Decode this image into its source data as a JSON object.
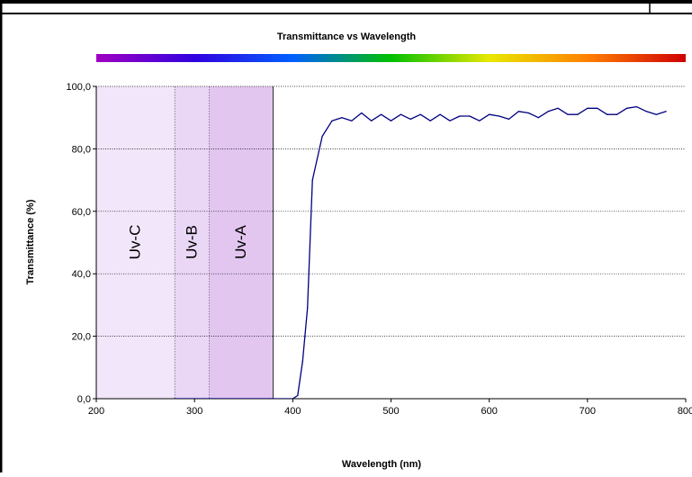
{
  "chart_data": {
    "type": "line",
    "title": "Transmittance vs Wavelength",
    "xlabel": "Wavelength (nm)",
    "ylabel": "Transmittance (%)",
    "xlim": [
      200,
      800
    ],
    "ylim": [
      0,
      100
    ],
    "x_ticks": [
      200,
      300,
      400,
      500,
      600,
      700,
      800
    ],
    "x_tick_labels": [
      "200",
      "300",
      "400",
      "500",
      "600",
      "700",
      "800"
    ],
    "y_ticks": [
      0,
      20,
      40,
      60,
      80,
      100
    ],
    "y_tick_labels": [
      "0,0",
      "20,0",
      "40,0",
      "60,0",
      "80,0",
      "100,0"
    ],
    "grid": {
      "horizontal": true,
      "vertical": false,
      "style": "dotted"
    },
    "spectrum_bar_colors": [
      "#a000c0",
      "#3000e0",
      "#0060ff",
      "#00c000",
      "#e8e800",
      "#ff8000",
      "#d00000"
    ],
    "line_color": "#000080",
    "uv_regions": [
      {
        "label": "Uv-C",
        "x0": 200,
        "x1": 280,
        "color": "#f2e6fa"
      },
      {
        "label": "Uv-B",
        "x0": 280,
        "x1": 315,
        "color": "#ead6f5"
      },
      {
        "label": "Uv-A",
        "x0": 315,
        "x1": 380,
        "color": "#e2c6f0"
      }
    ],
    "series": [
      {
        "x": [
          280,
          290,
          300,
          310,
          320,
          330,
          340,
          350,
          360,
          370,
          380,
          390,
          400,
          405,
          410,
          415,
          420,
          430,
          440,
          450,
          460,
          470,
          480,
          490,
          500,
          510,
          520,
          530,
          540,
          550,
          560,
          570,
          580,
          590,
          600,
          610,
          620,
          630,
          640,
          650,
          660,
          670,
          680,
          690,
          700,
          710,
          720,
          730,
          740,
          750,
          760,
          770,
          780
        ],
        "y": [
          0,
          0,
          0,
          0,
          0,
          0,
          0,
          0,
          0,
          0,
          0,
          0,
          0,
          1,
          12,
          29,
          70,
          84,
          89,
          90,
          89,
          91.5,
          89,
          91,
          89,
          91,
          89.5,
          91,
          89,
          91,
          89,
          90.5,
          90.5,
          89,
          91,
          90.5,
          89.5,
          92,
          91.5,
          90,
          92,
          93,
          91,
          91,
          93,
          93,
          91,
          91,
          93,
          93.5,
          92,
          91,
          92
        ]
      }
    ]
  }
}
